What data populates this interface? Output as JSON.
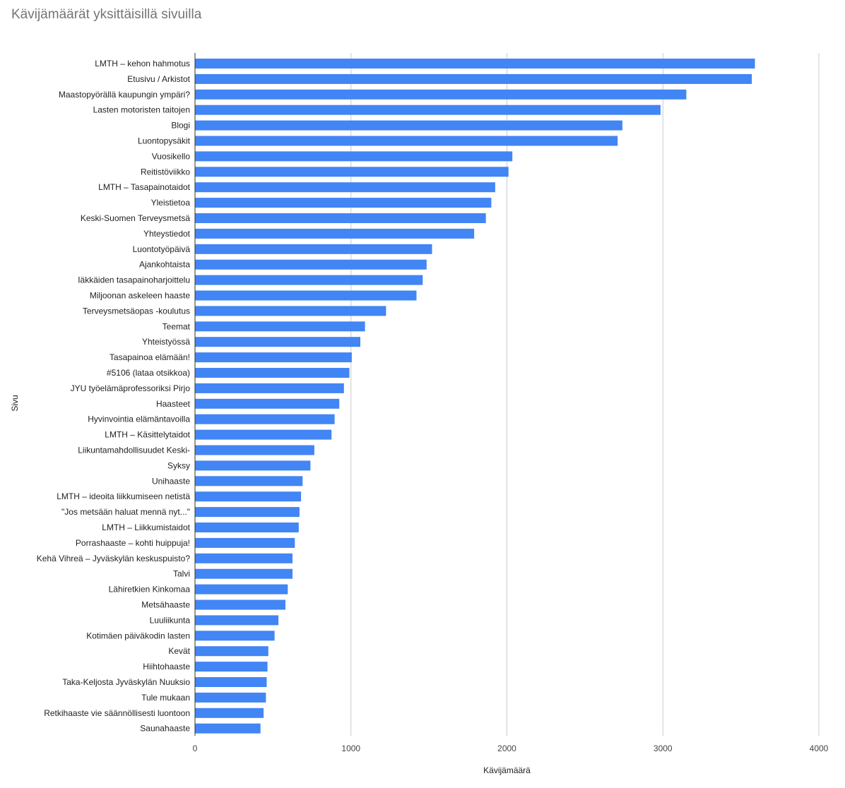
{
  "chart_data": {
    "type": "bar",
    "orientation": "horizontal",
    "title": "Kävijämäärät yksittäisillä sivuilla",
    "xlabel": "Kävijämäärä",
    "ylabel": "Sivu",
    "xlim": [
      0,
      4000
    ],
    "xticks": [
      0,
      1000,
      2000,
      3000,
      4000
    ],
    "grid": true,
    "legend": "none",
    "bar_color": "#4285f4",
    "categories": [
      "LMTH – kehon hahmotus",
      "Etusivu / Arkistot",
      "Maastopyörällä kaupungin ympäri?",
      "Lasten motoristen taitojen",
      "Blogi",
      "Luontopysäkit",
      "Vuosikello",
      "Reitistöviikko",
      "LMTH – Tasapainotaidot",
      "Yleistietoa",
      "Keski-Suomen Terveysmetsä",
      "Yhteystiedot",
      "Luontotyöpäivä",
      "Ajankohtaista",
      "Iäkkäiden tasapainoharjoittelu",
      "Miljoonan askeleen haaste",
      "Terveysmetsäopas -koulutus",
      "Teemat",
      "Yhteistyössä",
      "Tasapainoa elämään!",
      "#5106 (lataa otsikkoa)",
      "JYU työelämäprofessoriksi Pirjo",
      "Haasteet",
      "Hyvinvointia elämäntavoilla",
      "LMTH – Käsittelytaidot",
      "Liikuntamahdollisuudet Keski-",
      "Syksy",
      "Unihaaste",
      "LMTH – ideoita liikkumiseen netistä",
      "\"Jos metsään haluat mennä nyt...\"",
      "LMTH – Liikkumistaidot",
      "Porrashaaste – kohti huippuja!",
      "Kehä Vihreä – Jyväskylän keskuspuisto?",
      "Talvi",
      "Lähiretkien Kinkomaa",
      "Metsähaaste",
      "Luuliikunta",
      "Kotimäen päiväkodin lasten",
      "Kevät",
      "Hiihtohaaste",
      "Taka-Keljosta Jyväskylän Nuuksio",
      "Tule mukaan",
      "Retkihaaste vie säännöllisesti luontoon",
      "Saunahaaste"
    ],
    "values": [
      3590,
      3570,
      3150,
      2985,
      2740,
      2710,
      2035,
      2010,
      1925,
      1900,
      1865,
      1790,
      1520,
      1485,
      1460,
      1420,
      1225,
      1090,
      1060,
      1005,
      990,
      955,
      925,
      895,
      875,
      765,
      740,
      690,
      680,
      670,
      665,
      640,
      625,
      625,
      595,
      580,
      535,
      510,
      470,
      465,
      460,
      455,
      440,
      420
    ]
  }
}
